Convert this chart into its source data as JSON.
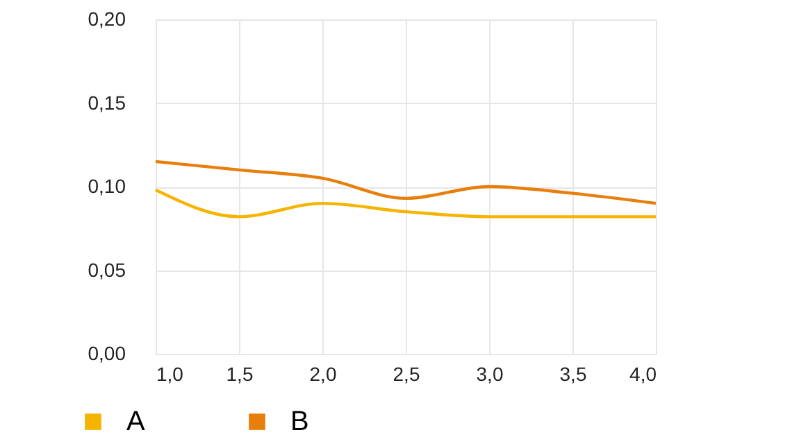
{
  "chart_data": {
    "type": "line",
    "x": [
      1.0,
      1.5,
      2.0,
      2.5,
      3.0,
      3.5,
      4.0
    ],
    "series": [
      {
        "name": "A",
        "color": "#f5b400",
        "values": [
          0.098,
          0.082,
          0.09,
          0.085,
          0.082,
          0.082,
          0.082
        ]
      },
      {
        "name": "B",
        "color": "#e87e0c",
        "values": [
          0.115,
          0.11,
          0.105,
          0.093,
          0.1,
          0.096,
          0.09
        ]
      }
    ],
    "xlim": [
      1.0,
      4.0
    ],
    "xticks": [
      {
        "value": 1.0,
        "label": "1,0"
      },
      {
        "value": 1.5,
        "label": "1,5"
      },
      {
        "value": 2.0,
        "label": "2,0"
      },
      {
        "value": 2.5,
        "label": "2,5"
      },
      {
        "value": 3.0,
        "label": "3,0"
      },
      {
        "value": 3.5,
        "label": "3,5"
      },
      {
        "value": 4.0,
        "label": "4,0"
      }
    ],
    "ylim": [
      0,
      0.2
    ],
    "yticks": [
      {
        "value": 0,
        "label": "0,00"
      },
      {
        "value": 0.05,
        "label": "0,05"
      },
      {
        "value": 0.1,
        "label": "0,10"
      },
      {
        "value": 0.15,
        "label": "0,15"
      },
      {
        "value": 0.2,
        "label": "0,20"
      }
    ],
    "grid": true,
    "legend": "bottom left",
    "marker": "none",
    "line_style": "solid"
  }
}
